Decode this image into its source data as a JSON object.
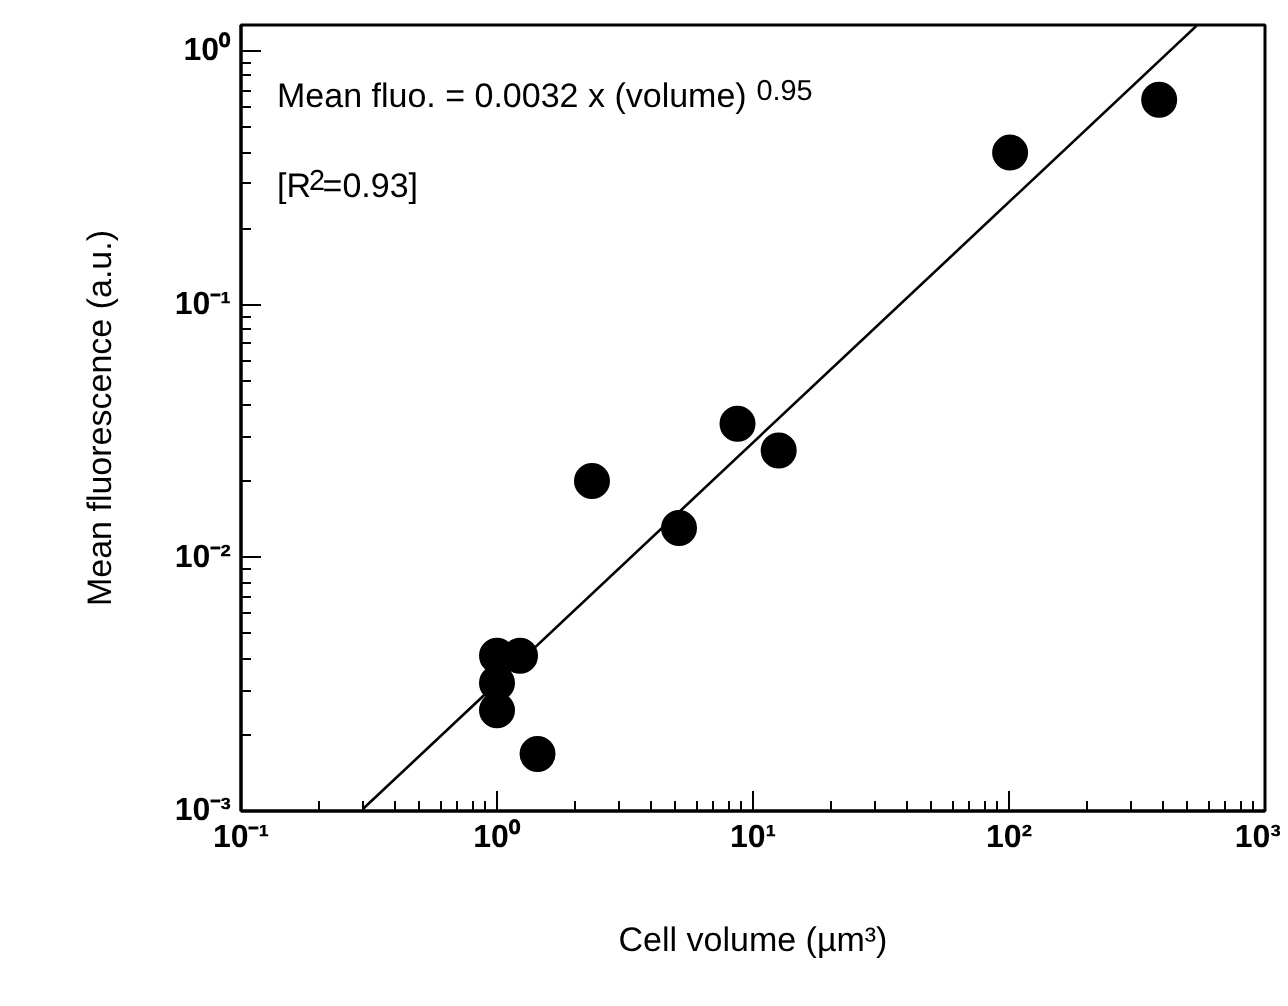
{
  "chart_data": {
    "type": "scatter",
    "xlabel": "Cell volume (µm³)",
    "ylabel": "Mean fluorescence (a.u.)",
    "log": "xy",
    "grid": false,
    "xlim": [
      0.1,
      1000
    ],
    "ylim": [
      0.001,
      1.27
    ],
    "xticks": [
      {
        "value": 0.1,
        "label": "10⁻¹"
      },
      {
        "value": 1,
        "label": "10⁰"
      },
      {
        "value": 10,
        "label": "10¹"
      },
      {
        "value": 100,
        "label": "10²"
      },
      {
        "value": 1000,
        "label": "10³"
      }
    ],
    "yticks": [
      {
        "value": 0.001,
        "label": "10⁻³"
      },
      {
        "value": 0.01,
        "label": "10⁻²"
      },
      {
        "value": 0.1,
        "label": "10⁻¹"
      },
      {
        "value": 1,
        "label": "10⁰"
      }
    ],
    "annotations": [
      "Mean fluo. = 0.0032 x (volume)$^{0.95}$",
      "[R$^{2}$=0.93]"
    ],
    "series": [
      {
        "color": "#000000",
        "marker": "circle",
        "x": [
          1,
          1,
          1,
          1.23,
          1.44,
          2.35,
          5.14,
          8.7,
          12.6,
          101,
          386
        ],
        "values": [
          0.0041,
          0.0032,
          0.0025,
          0.0041,
          0.00168,
          0.0201,
          0.0131,
          0.0338,
          0.0265,
          0.398,
          0.644
        ]
      },
      {
        "type": "line",
        "color": "#000000",
        "line_style": "solid",
        "x": [
          0.3,
          540
        ],
        "values": [
          0.00102,
          1.26
        ]
      }
    ]
  }
}
